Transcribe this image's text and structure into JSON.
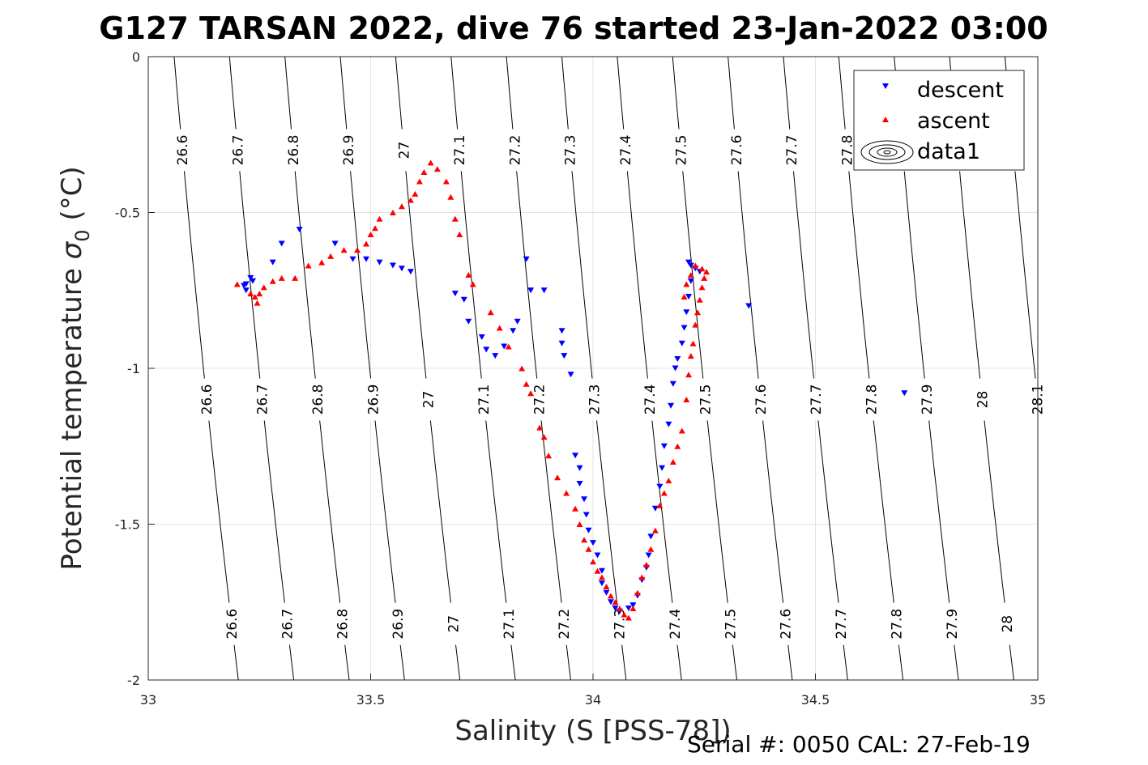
{
  "title": "G127 TARSAN 2022, dive 76 started 23-Jan-2022 03:00",
  "footer": "Serial #: 0050  CAL: 27-Feb-19",
  "chart_data": {
    "type": "scatter",
    "title": "G127 TARSAN 2022, dive 76 started 23-Jan-2022 03:00",
    "xlabel": "Salinity (S [PSS-78])",
    "ylabel_main": "Potential temperature ",
    "ylabel_sigma": "σ",
    "ylabel_sub": "0",
    "ylabel_unit": " (°C)",
    "xlim": [
      33,
      35
    ],
    "ylim": [
      -2,
      0
    ],
    "y_direction": "reversed",
    "grid": true,
    "legend_position": "top-right",
    "xticks": [
      "33",
      "33.5",
      "34",
      "34.5",
      "35"
    ],
    "yticks": [
      "0",
      "-0.5",
      "-1",
      "-1.5",
      "-2"
    ],
    "contour_levels": [
      "26.6",
      "26.7",
      "26.8",
      "26.9",
      "27",
      "27.1",
      "27.2",
      "27.3",
      "27.4",
      "27.5",
      "27.6",
      "27.7",
      "27.8",
      "27.9",
      "28",
      "28.1"
    ],
    "legend": [
      "descent",
      "ascent",
      "data1"
    ],
    "series": [
      {
        "name": "descent",
        "color": "#0000ff",
        "marker": "triangle-down",
        "points": [
          [
            33.22,
            -0.73
          ],
          [
            33.23,
            -0.71
          ],
          [
            33.22,
            -0.75
          ],
          [
            33.215,
            -0.735
          ],
          [
            33.235,
            -0.72
          ],
          [
            33.28,
            -0.66
          ],
          [
            33.3,
            -0.6
          ],
          [
            33.34,
            -0.555
          ],
          [
            33.42,
            -0.6
          ],
          [
            33.46,
            -0.65
          ],
          [
            33.49,
            -0.65
          ],
          [
            33.52,
            -0.66
          ],
          [
            33.55,
            -0.67
          ],
          [
            33.57,
            -0.68
          ],
          [
            33.59,
            -0.69
          ],
          [
            33.69,
            -0.76
          ],
          [
            33.71,
            -0.78
          ],
          [
            33.72,
            -0.85
          ],
          [
            33.75,
            -0.9
          ],
          [
            33.76,
            -0.94
          ],
          [
            33.78,
            -0.96
          ],
          [
            33.8,
            -0.93
          ],
          [
            33.82,
            -0.88
          ],
          [
            33.83,
            -0.85
          ],
          [
            33.85,
            -0.65
          ],
          [
            33.86,
            -0.75
          ],
          [
            33.89,
            -0.75
          ],
          [
            33.93,
            -0.88
          ],
          [
            33.93,
            -0.92
          ],
          [
            33.935,
            -0.96
          ],
          [
            33.95,
            -1.02
          ],
          [
            33.96,
            -1.28
          ],
          [
            33.97,
            -1.32
          ],
          [
            33.97,
            -1.37
          ],
          [
            33.98,
            -1.42
          ],
          [
            33.985,
            -1.47
          ],
          [
            33.99,
            -1.52
          ],
          [
            34.0,
            -1.56
          ],
          [
            34.01,
            -1.6
          ],
          [
            34.02,
            -1.65
          ],
          [
            34.02,
            -1.69
          ],
          [
            34.03,
            -1.72
          ],
          [
            34.04,
            -1.75
          ],
          [
            34.05,
            -1.77
          ],
          [
            34.06,
            -1.78
          ],
          [
            34.08,
            -1.77
          ],
          [
            34.09,
            -1.76
          ],
          [
            34.1,
            -1.73
          ],
          [
            34.11,
            -1.68
          ],
          [
            34.12,
            -1.64
          ],
          [
            34.125,
            -1.6
          ],
          [
            34.13,
            -1.54
          ],
          [
            34.14,
            -1.45
          ],
          [
            34.15,
            -1.38
          ],
          [
            34.155,
            -1.32
          ],
          [
            34.16,
            -1.25
          ],
          [
            34.17,
            -1.18
          ],
          [
            34.175,
            -1.12
          ],
          [
            34.18,
            -1.05
          ],
          [
            34.185,
            -1.0
          ],
          [
            34.19,
            -0.97
          ],
          [
            34.2,
            -0.92
          ],
          [
            34.205,
            -0.87
          ],
          [
            34.21,
            -0.82
          ],
          [
            34.215,
            -0.77
          ],
          [
            34.22,
            -0.72
          ],
          [
            34.215,
            -0.66
          ],
          [
            34.22,
            -0.67
          ],
          [
            34.23,
            -0.68
          ],
          [
            34.24,
            -0.69
          ],
          [
            34.35,
            -0.8
          ],
          [
            34.7,
            -1.08
          ]
        ]
      },
      {
        "name": "ascent",
        "color": "#ff0000",
        "marker": "triangle-up",
        "points": [
          [
            33.2,
            -0.73
          ],
          [
            33.23,
            -0.76
          ],
          [
            33.24,
            -0.77
          ],
          [
            33.245,
            -0.79
          ],
          [
            33.25,
            -0.76
          ],
          [
            33.26,
            -0.74
          ],
          [
            33.28,
            -0.72
          ],
          [
            33.3,
            -0.71
          ],
          [
            33.33,
            -0.71
          ],
          [
            33.36,
            -0.67
          ],
          [
            33.39,
            -0.66
          ],
          [
            33.41,
            -0.64
          ],
          [
            33.44,
            -0.62
          ],
          [
            33.47,
            -0.62
          ],
          [
            33.49,
            -0.6
          ],
          [
            33.5,
            -0.57
          ],
          [
            33.51,
            -0.55
          ],
          [
            33.52,
            -0.52
          ],
          [
            33.55,
            -0.5
          ],
          [
            33.57,
            -0.48
          ],
          [
            33.59,
            -0.46
          ],
          [
            33.6,
            -0.44
          ],
          [
            33.61,
            -0.4
          ],
          [
            33.62,
            -0.37
          ],
          [
            33.635,
            -0.34
          ],
          [
            33.65,
            -0.36
          ],
          [
            33.67,
            -0.4
          ],
          [
            33.68,
            -0.45
          ],
          [
            33.69,
            -0.52
          ],
          [
            33.7,
            -0.57
          ],
          [
            33.72,
            -0.7
          ],
          [
            33.73,
            -0.73
          ],
          [
            33.77,
            -0.82
          ],
          [
            33.79,
            -0.87
          ],
          [
            33.81,
            -0.93
          ],
          [
            33.84,
            -1.0
          ],
          [
            33.85,
            -1.05
          ],
          [
            33.86,
            -1.08
          ],
          [
            33.88,
            -1.19
          ],
          [
            33.89,
            -1.22
          ],
          [
            33.9,
            -1.28
          ],
          [
            33.92,
            -1.35
          ],
          [
            33.94,
            -1.4
          ],
          [
            33.96,
            -1.45
          ],
          [
            33.97,
            -1.5
          ],
          [
            33.98,
            -1.55
          ],
          [
            33.99,
            -1.58
          ],
          [
            34.0,
            -1.62
          ],
          [
            34.01,
            -1.65
          ],
          [
            34.02,
            -1.67
          ],
          [
            34.03,
            -1.7
          ],
          [
            34.04,
            -1.73
          ],
          [
            34.05,
            -1.75
          ],
          [
            34.06,
            -1.77
          ],
          [
            34.07,
            -1.79
          ],
          [
            34.08,
            -1.8
          ],
          [
            34.09,
            -1.77
          ],
          [
            34.1,
            -1.72
          ],
          [
            34.11,
            -1.67
          ],
          [
            34.12,
            -1.63
          ],
          [
            34.13,
            -1.58
          ],
          [
            34.14,
            -1.52
          ],
          [
            34.15,
            -1.44
          ],
          [
            34.16,
            -1.4
          ],
          [
            34.17,
            -1.36
          ],
          [
            34.18,
            -1.3
          ],
          [
            34.19,
            -1.25
          ],
          [
            34.2,
            -1.2
          ],
          [
            34.21,
            -1.1
          ],
          [
            34.215,
            -1.02
          ],
          [
            34.22,
            -0.96
          ],
          [
            34.225,
            -0.92
          ],
          [
            34.23,
            -0.86
          ],
          [
            34.235,
            -0.82
          ],
          [
            34.24,
            -0.78
          ],
          [
            34.245,
            -0.74
          ],
          [
            34.25,
            -0.71
          ],
          [
            34.255,
            -0.69
          ],
          [
            34.245,
            -0.68
          ],
          [
            34.23,
            -0.67
          ],
          [
            34.22,
            -0.7
          ],
          [
            34.21,
            -0.73
          ],
          [
            34.205,
            -0.77
          ]
        ]
      }
    ]
  }
}
